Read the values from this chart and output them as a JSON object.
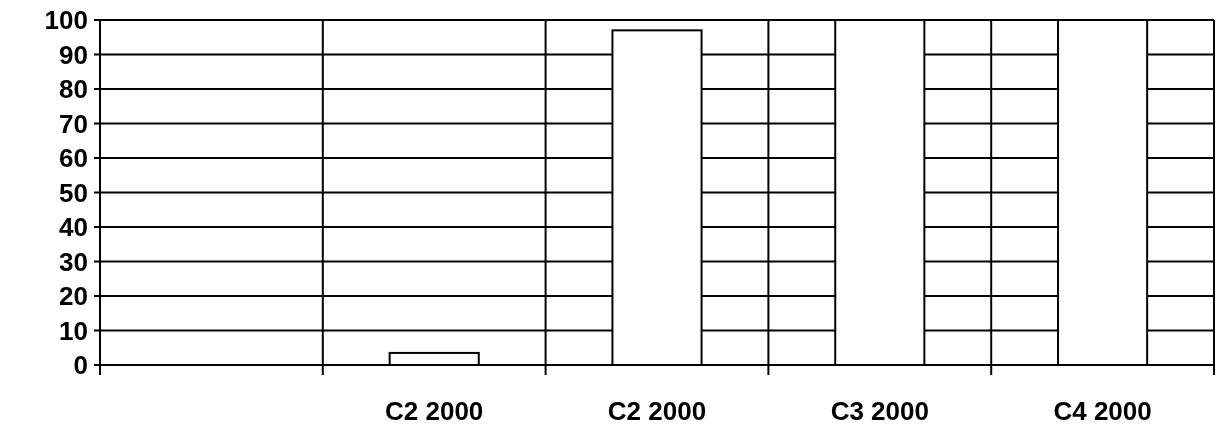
{
  "chart_data": {
    "type": "bar",
    "categories": [
      null,
      "C2 2000",
      "C2 2000",
      "C3 2000",
      "C4 2000"
    ],
    "values": [
      null,
      3.5,
      97,
      100,
      100
    ],
    "color": "#ffffff",
    "ylim": [
      0,
      100
    ],
    "yticks": [
      0,
      10,
      20,
      30,
      40,
      50,
      60,
      70,
      80,
      90,
      100
    ],
    "grid": true
  }
}
